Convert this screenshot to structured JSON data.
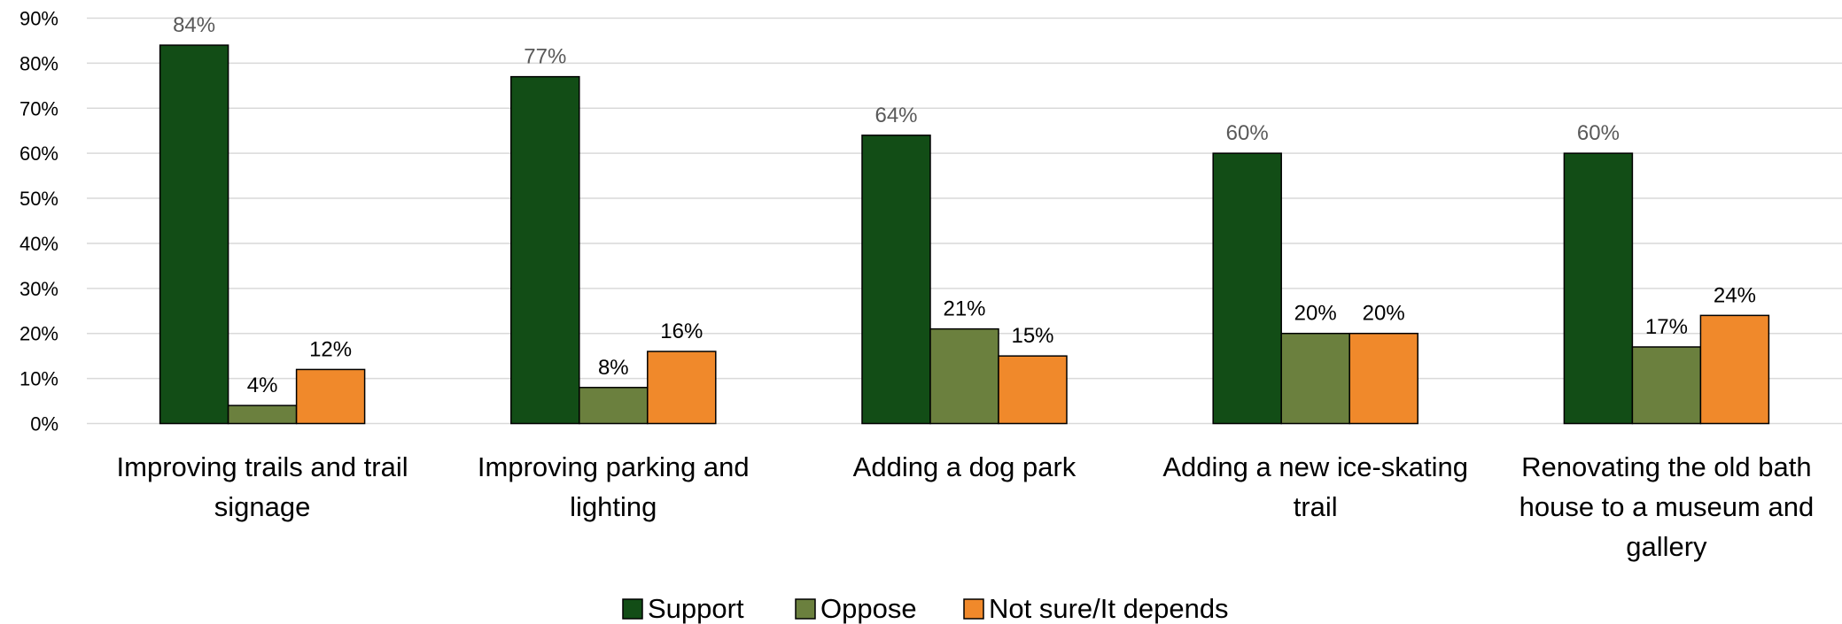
{
  "chart_data": {
    "type": "bar",
    "categories": [
      [
        "Improving trails and trail",
        "signage"
      ],
      [
        "Improving parking and",
        "lighting"
      ],
      [
        "Adding a dog park"
      ],
      [
        "Adding a new ice-skating",
        "trail"
      ],
      [
        "Renovating the old bath",
        "house to a museum and",
        "gallery"
      ]
    ],
    "series": [
      {
        "name": "Support",
        "color": "#124d16",
        "values": [
          84,
          77,
          64,
          60,
          60
        ],
        "labels": [
          "84%",
          "77%",
          "64%",
          "60%",
          "60%"
        ]
      },
      {
        "name": "Oppose",
        "color": "#6b803e",
        "values": [
          4,
          8,
          21,
          20,
          17
        ],
        "labels": [
          "4%",
          "8%",
          "21%",
          "20%",
          "17%"
        ]
      },
      {
        "name": "Not sure/It depends",
        "color": "#f0892b",
        "values": [
          12,
          16,
          15,
          20,
          24
        ],
        "labels": [
          "12%",
          "16%",
          "15%",
          "20%",
          "24%"
        ]
      }
    ],
    "y_ticks": [
      "0%",
      "10%",
      "20%",
      "30%",
      "40%",
      "50%",
      "60%",
      "70%",
      "80%",
      "90%"
    ],
    "ylim": [
      0,
      90
    ],
    "grid": true,
    "legend_position": "bottom"
  }
}
